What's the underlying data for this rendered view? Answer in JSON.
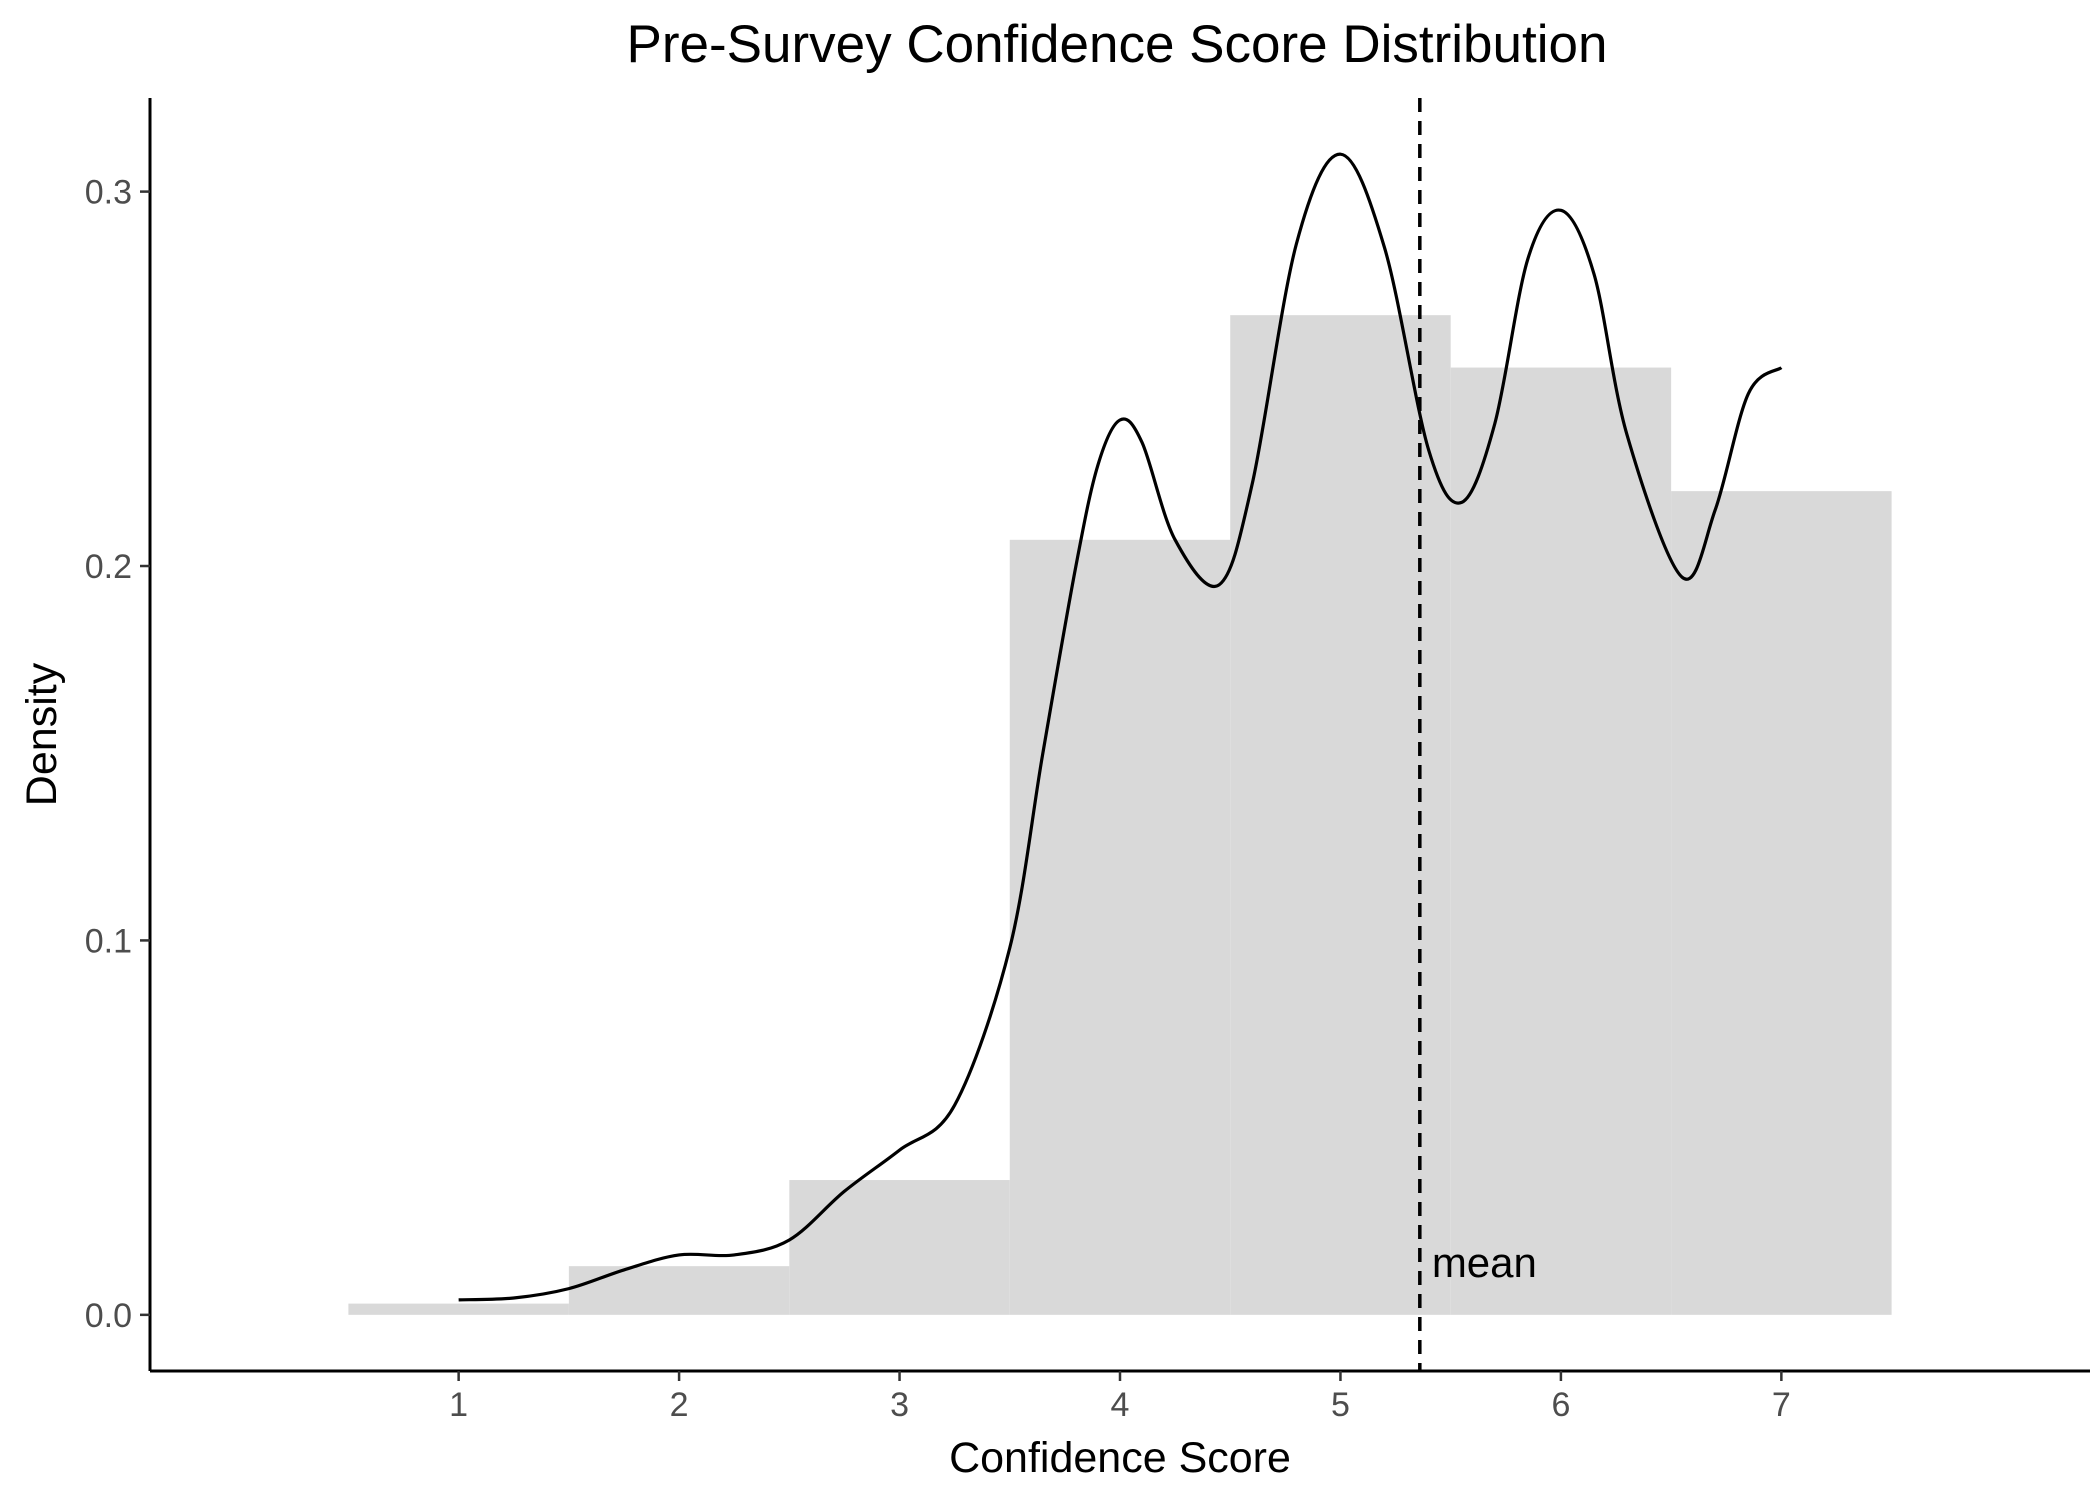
{
  "chart_data": {
    "type": "bar",
    "title": "Pre-Survey Confidence Score Distribution",
    "xlabel": "Confidence Score",
    "ylabel": "Density",
    "xlim": [
      -0.4,
      8.4
    ],
    "ylim": [
      -0.015,
      0.325
    ],
    "x_ticks": [
      1,
      2,
      3,
      4,
      5,
      6,
      7
    ],
    "x_tick_labels": [
      "1",
      "2",
      "3",
      "4",
      "5",
      "6",
      "7"
    ],
    "y_ticks": [
      0.0,
      0.1,
      0.2,
      0.3
    ],
    "y_tick_labels": [
      "0.0",
      "0.1",
      "0.2",
      "0.3"
    ],
    "grid": false,
    "histogram": {
      "categories": [
        1,
        2,
        3,
        4,
        5,
        6,
        7
      ],
      "bin_width": 1,
      "values": [
        0.003,
        0.013,
        0.036,
        0.207,
        0.267,
        0.253,
        0.22
      ],
      "color": "#d9d9d9"
    },
    "density_curve": {
      "color": "#000000",
      "x": [
        1.0,
        1.25,
        1.5,
        1.75,
        2.0,
        2.25,
        2.5,
        2.75,
        3.0,
        3.25,
        3.5,
        3.65,
        3.8,
        3.9,
        4.0,
        4.1,
        4.25,
        4.45,
        4.6,
        4.8,
        5.0,
        5.2,
        5.4,
        5.55,
        5.7,
        5.85,
        6.0,
        6.15,
        6.3,
        6.55,
        6.7,
        6.85,
        7.0
      ],
      "y": [
        0.004,
        0.0045,
        0.007,
        0.012,
        0.016,
        0.016,
        0.02,
        0.033,
        0.044,
        0.056,
        0.098,
        0.15,
        0.2,
        0.227,
        0.239,
        0.233,
        0.207,
        0.195,
        0.222,
        0.286,
        0.31,
        0.285,
        0.231,
        0.217,
        0.238,
        0.282,
        0.295,
        0.278,
        0.235,
        0.197,
        0.215,
        0.246,
        0.253
      ]
    },
    "mean_line": {
      "x": 5.36,
      "label": "mean",
      "style": "dashed",
      "color": "#000000"
    }
  }
}
